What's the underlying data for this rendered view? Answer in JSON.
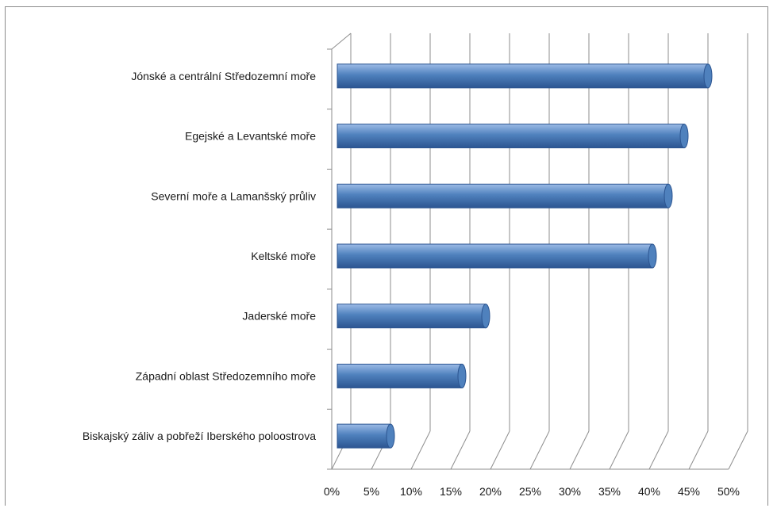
{
  "chart_data": {
    "type": "bar",
    "orientation": "horizontal",
    "categories": [
      "Jónské a centrální Středozemní moře",
      "Egejské a Levantské moře",
      "Severní moře a Lamanšský průliv",
      "Keltské moře",
      "Jaderské moře",
      "Západní oblast Středozemního moře",
      "Biskajský záliv a pobřeží Iberského poloostrova"
    ],
    "values": [
      47,
      44,
      42,
      40,
      19,
      16,
      7
    ],
    "value_format": "percent",
    "xlim": [
      0,
      50
    ],
    "x_ticks": [
      "0%",
      "5%",
      "10%",
      "15%",
      "20%",
      "25%",
      "30%",
      "35%",
      "40%",
      "45%",
      "50%"
    ],
    "grid": true,
    "legend": "none",
    "bar_color": "#4f81bd",
    "bar_color_dark": "#2c5591",
    "bar_color_light": "#9cbbe6",
    "gridline_color": "#8c8c8c"
  }
}
